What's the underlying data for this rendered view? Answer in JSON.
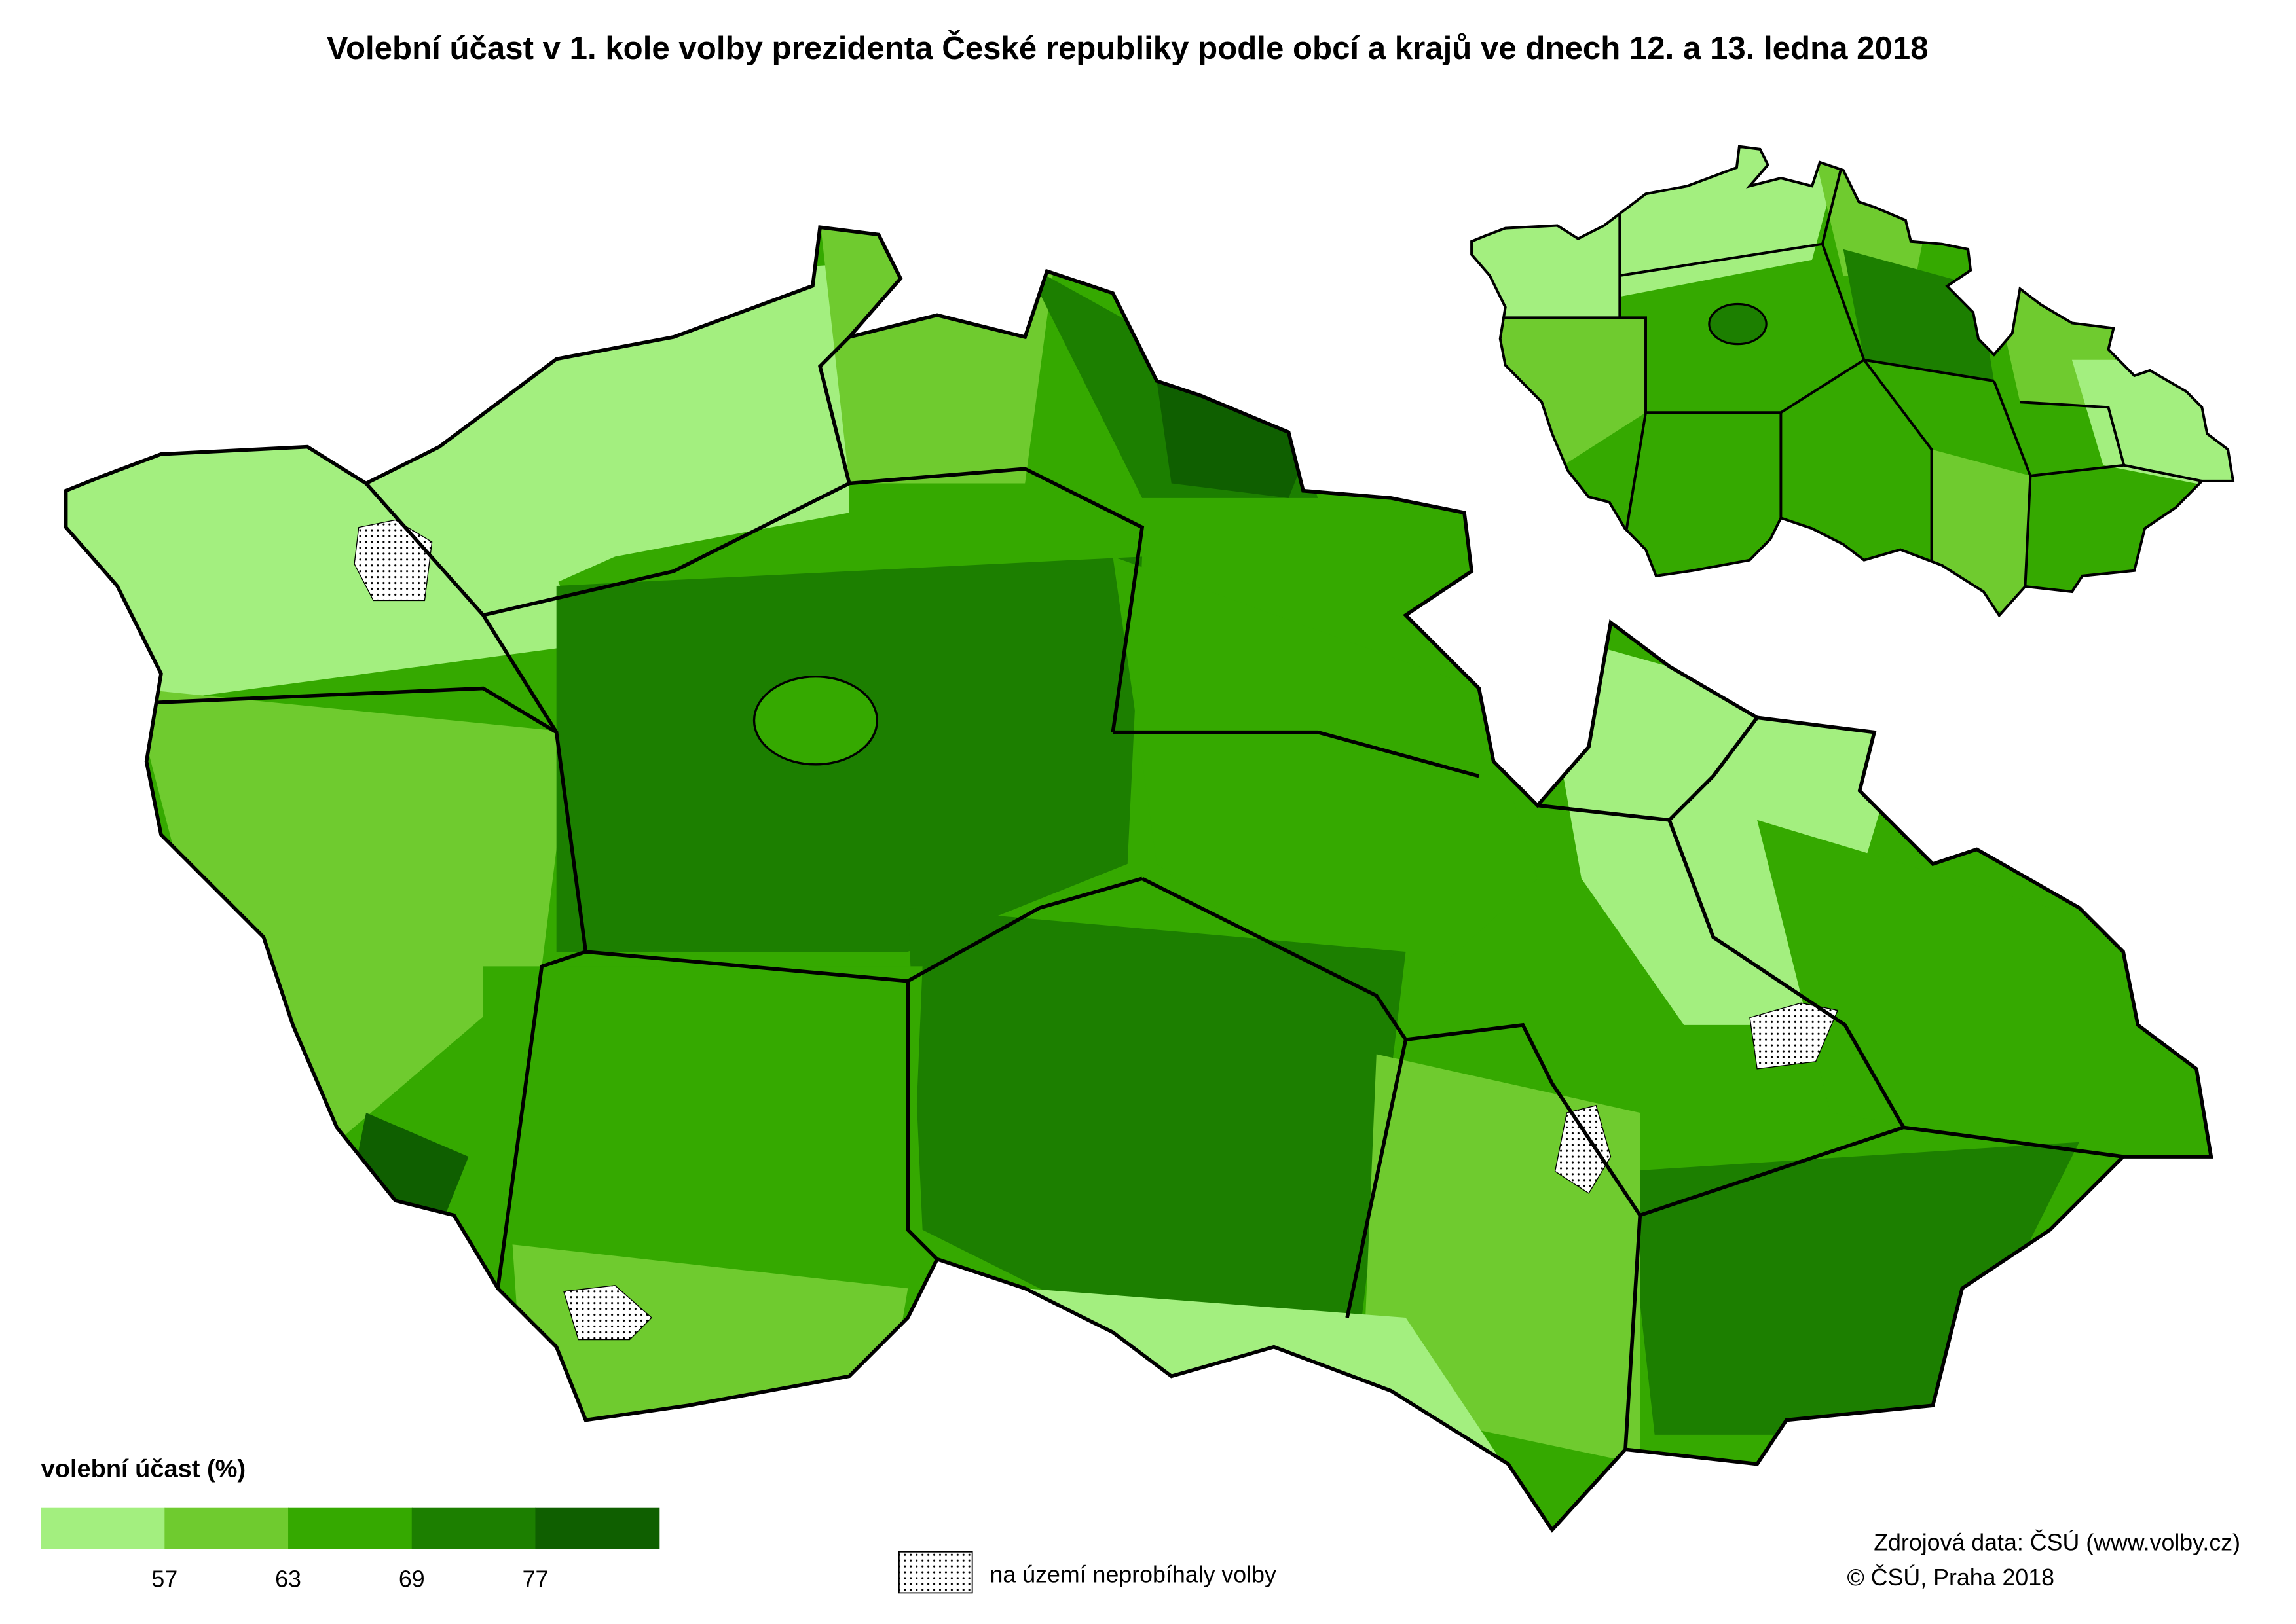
{
  "title": "Volební účast v 1. kole volby prezidenta České republiky podle obcí a krajů ve dnech 12. a 13. ledna 2018",
  "legend": {
    "title": "volební účast (%)",
    "breaks": [
      57,
      63,
      69,
      77
    ],
    "colors": [
      "#a3ef7f",
      "#6fcb2f",
      "#35a900",
      "#1c7f00",
      "#0f5f00"
    ]
  },
  "no_data_note": "na území neprobíhaly volby",
  "source": [
    "Zdrojová data: ČSÚ (www.volby.cz)",
    "© ČSÚ, Praha 2018"
  ]
}
